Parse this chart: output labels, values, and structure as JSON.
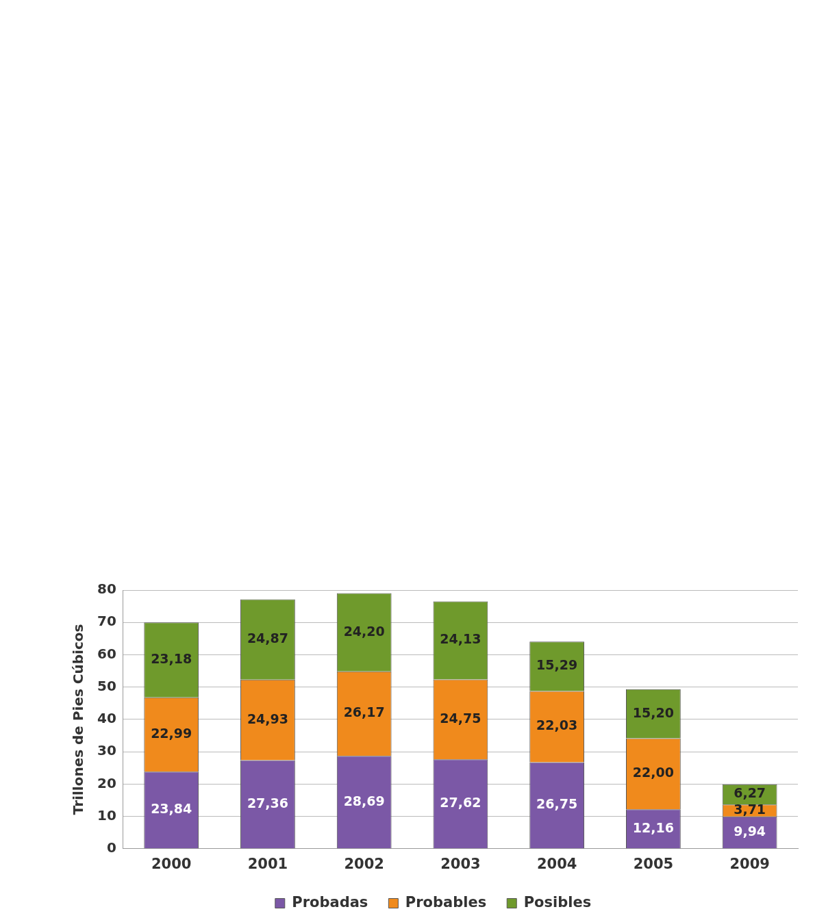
{
  "chart_data": {
    "type": "bar",
    "ylabel": "Trillones de Pies Cúbicos",
    "categories": [
      "2000",
      "2001",
      "2002",
      "2003",
      "2004",
      "2005",
      "2009"
    ],
    "stacked": true,
    "ylim": [
      0,
      80
    ],
    "yticks": [
      0,
      10,
      20,
      30,
      40,
      50,
      60,
      70,
      80
    ],
    "grid": "y",
    "legend": "bottom",
    "series": [
      {
        "name": "Probadas",
        "color": "#7b58a6",
        "values": [
          23.84,
          27.36,
          28.69,
          27.62,
          26.75,
          12.16,
          9.94
        ],
        "value_labels": [
          "23,84",
          "27,36",
          "28,69",
          "27,62",
          "26,75",
          "12,16",
          "9,94"
        ]
      },
      {
        "name": "Probables",
        "color": "#f08a1c",
        "values": [
          22.99,
          24.93,
          26.17,
          24.75,
          22.03,
          22.0,
          3.71
        ],
        "value_labels": [
          "22,99",
          "24,93",
          "26,17",
          "24,75",
          "22,03",
          "22,00",
          "3,71"
        ]
      },
      {
        "name": "Posibles",
        "color": "#6f9a2c",
        "values": [
          23.18,
          24.87,
          24.2,
          24.13,
          15.29,
          15.2,
          6.27
        ],
        "value_labels": [
          "23,18",
          "24,87",
          "24,20",
          "24,13",
          "15,29",
          "15,20",
          "6,27"
        ]
      }
    ]
  }
}
